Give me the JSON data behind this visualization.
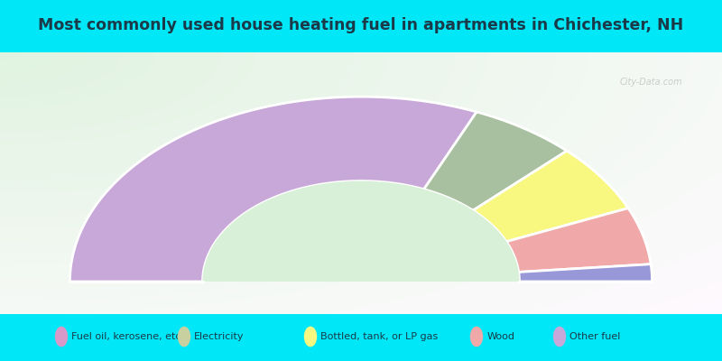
{
  "title": "Most commonly used house heating fuel in apartments in Chichester, NH",
  "title_color": "#1a3a4a",
  "bg_cyan": "#00e8f8",
  "bg_chart_tl": "#c8eec8",
  "bg_chart_br": "#f0faf0",
  "segments": [
    {
      "label": "Other fuel",
      "value": 63,
      "color": "#c8a8d8"
    },
    {
      "label": "Electricity",
      "value": 12,
      "color": "#a8c0a0"
    },
    {
      "label": "Bottled, tank, or LP gas",
      "value": 12,
      "color": "#f8f880"
    },
    {
      "label": "Wood",
      "value": 10,
      "color": "#f0a8a8"
    },
    {
      "label": "Fuel oil, kerosene, etc.",
      "value": 3,
      "color": "#9898d8"
    }
  ],
  "legend_labels": [
    "Fuel oil, kerosene, etc.",
    "Electricity",
    "Bottled, tank, or LP gas",
    "Wood",
    "Other fuel"
  ],
  "legend_colors": [
    "#d898c8",
    "#c8d0a0",
    "#f8f880",
    "#f0a8a8",
    "#c8a8d8"
  ],
  "outer_r": 1.25,
  "inner_r": 0.68,
  "figsize": [
    8.0,
    4.0
  ],
  "dpi": 100
}
